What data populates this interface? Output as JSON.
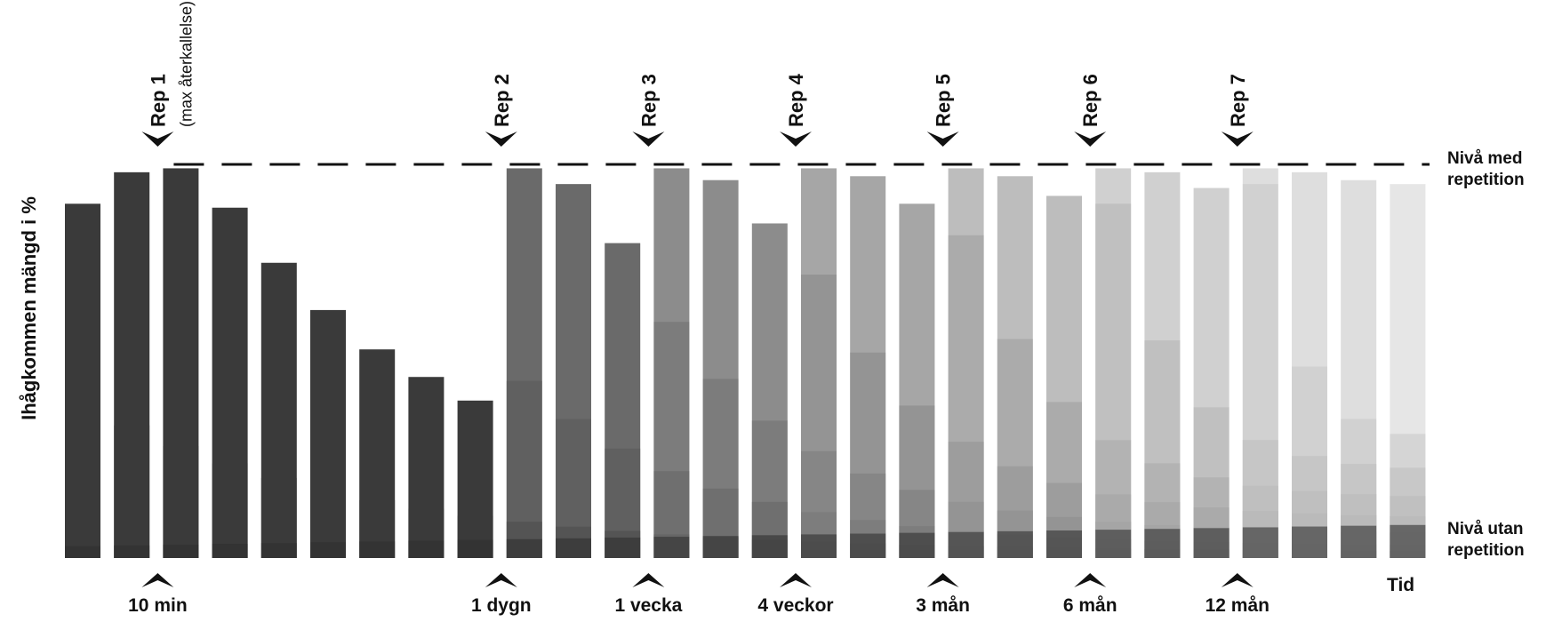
{
  "chart_data": {
    "type": "bar",
    "ylabel": "Ihågkommen mängd i %",
    "xlabel": "Tid",
    "levels": {
      "with_repetition": "Nivå med repetition",
      "without_repetition": "Nivå utan repetition"
    },
    "repetitions": [
      {
        "label": "Rep 1",
        "sublabel": "(max återkallelse)",
        "at_bar": 2
      },
      {
        "label": "Rep 2",
        "sublabel": "",
        "at_bar": 9
      },
      {
        "label": "Rep 3",
        "sublabel": "",
        "at_bar": 12
      },
      {
        "label": "Rep 4",
        "sublabel": "",
        "at_bar": 15
      },
      {
        "label": "Rep 5",
        "sublabel": "",
        "at_bar": 18
      },
      {
        "label": "Rep 6",
        "sublabel": "",
        "at_bar": 21
      },
      {
        "label": "Rep 7",
        "sublabel": "",
        "at_bar": 24
      }
    ],
    "time_marks": [
      {
        "label": "10 min",
        "at_bar": 2
      },
      {
        "label": "1 dygn",
        "at_bar": 9
      },
      {
        "label": "1 vecka",
        "at_bar": 12
      },
      {
        "label": "4 veckor",
        "at_bar": 15
      },
      {
        "label": "3 mån",
        "at_bar": 18
      },
      {
        "label": "6 mån",
        "at_bar": 21
      },
      {
        "label": "12 mån",
        "at_bar": 24
      }
    ],
    "bars": [
      {
        "top": 90,
        "shade": "#3a3a3a"
      },
      {
        "top": 98,
        "shade": "#3a3a3a"
      },
      {
        "top": 99,
        "shade": "#3a3a3a"
      },
      {
        "top": 89,
        "shade": "#3a3a3a"
      },
      {
        "top": 75,
        "shade": "#3a3a3a"
      },
      {
        "top": 63,
        "shade": "#3a3a3a"
      },
      {
        "top": 53,
        "shade": "#3a3a3a"
      },
      {
        "top": 46,
        "shade": "#3a3a3a"
      },
      {
        "top": 40,
        "shade": "#3a3a3a"
      },
      {
        "top": 99,
        "shade": "#6a6a6a"
      },
      {
        "top": 95,
        "shade": "#6a6a6a"
      },
      {
        "top": 80,
        "shade": "#6a6a6a"
      },
      {
        "top": 99,
        "shade": "#8c8c8c"
      },
      {
        "top": 96,
        "shade": "#8c8c8c"
      },
      {
        "top": 85,
        "shade": "#8c8c8c"
      },
      {
        "top": 99,
        "shade": "#a6a6a6"
      },
      {
        "top": 97,
        "shade": "#a6a6a6"
      },
      {
        "top": 90,
        "shade": "#a6a6a6"
      },
      {
        "top": 99,
        "shade": "#bdbdbd"
      },
      {
        "top": 97,
        "shade": "#bdbdbd"
      },
      {
        "top": 92,
        "shade": "#bdbdbd"
      },
      {
        "top": 99,
        "shade": "#d0d0d0"
      },
      {
        "top": 98,
        "shade": "#d0d0d0"
      },
      {
        "top": 94,
        "shade": "#d0d0d0"
      },
      {
        "top": 99,
        "shade": "#dedede"
      },
      {
        "top": 98,
        "shade": "#dedede"
      },
      {
        "top": 96,
        "shade": "#dedede"
      },
      {
        "top": 95,
        "shade": "#e6e6e6"
      }
    ],
    "stripes": [
      {
        "from_bar": 0,
        "color": "#3a3a3a",
        "bottom_start": 0,
        "top_start": 40,
        "decay_to": 1.5
      },
      {
        "from_bar": 9,
        "color": "#575757",
        "bottom_start": 0,
        "top_start": 45,
        "decay_to": 3
      },
      {
        "from_bar": 12,
        "color": "#6f6f6f",
        "bottom_start": 0,
        "top_start": 60,
        "decay_to": 6
      },
      {
        "from_bar": 15,
        "color": "#858585",
        "bottom_start": 0,
        "top_start": 72,
        "decay_to": 10
      },
      {
        "from_bar": 18,
        "color": "#9c9c9c",
        "bottom_start": 0,
        "top_start": 82,
        "decay_to": 15
      },
      {
        "from_bar": 21,
        "color": "#b2b2b2",
        "bottom_start": 0,
        "top_start": 90,
        "decay_to": 22
      },
      {
        "from_bar": 24,
        "color": "#c6c6c6",
        "bottom_start": 0,
        "top_start": 95,
        "decay_to": 30
      }
    ],
    "colors": {
      "ink": "#111111",
      "dashed_line": "#111111"
    }
  }
}
